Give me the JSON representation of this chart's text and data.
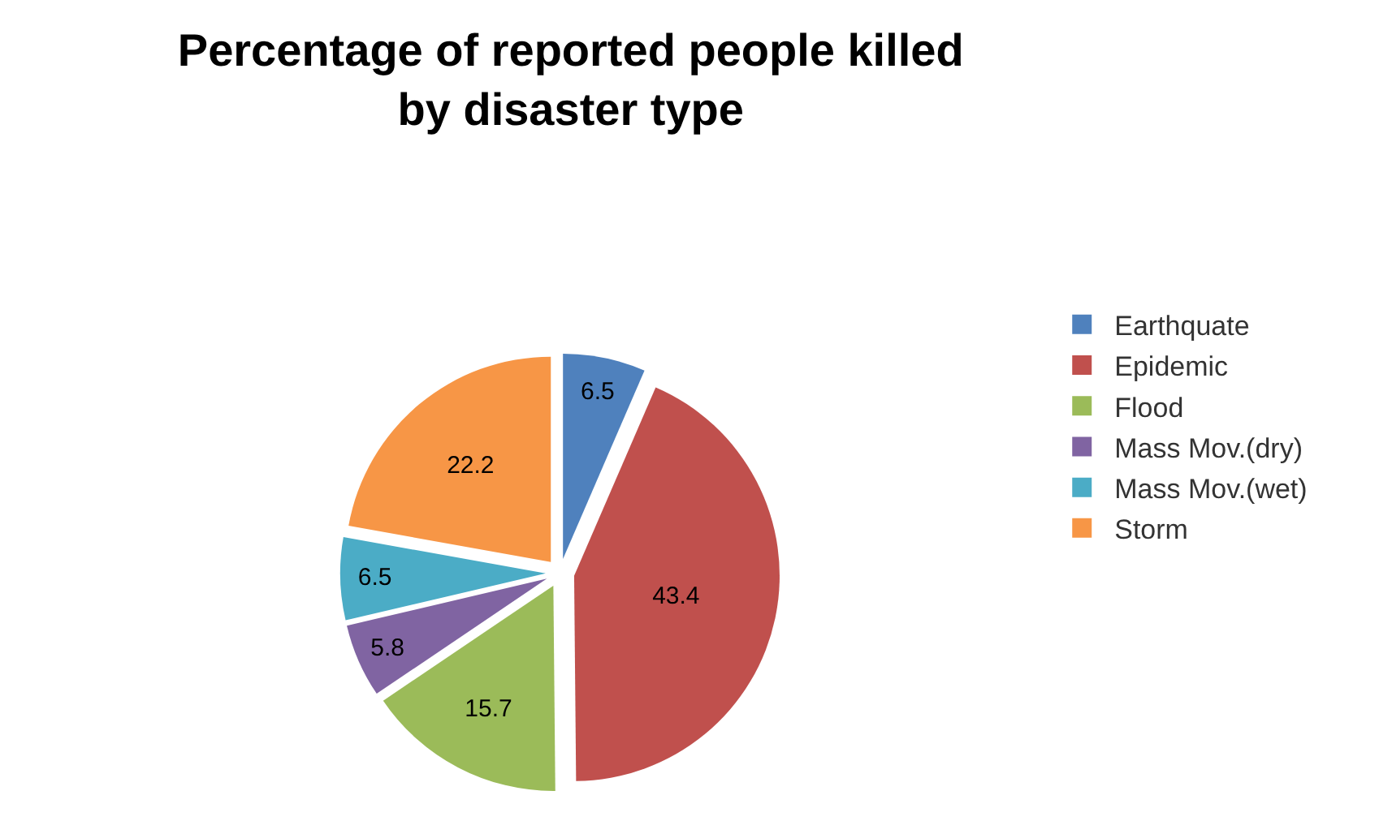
{
  "chart_data": {
    "type": "pie",
    "title": "Percentage of reported people killed by disaster type",
    "categories": [
      "Earthquate",
      "Epidemic",
      "Flood",
      "Mass Mov.(dry)",
      "Mass Mov.(wet)",
      "Storm"
    ],
    "values": [
      6.5,
      43.4,
      15.7,
      5.8,
      6.5,
      22.2
    ],
    "colors": [
      "#4f81bd",
      "#c0504d",
      "#9bbb59",
      "#8064a2",
      "#4bacc6",
      "#f79646"
    ],
    "data_labels": true,
    "legend": "right"
  }
}
